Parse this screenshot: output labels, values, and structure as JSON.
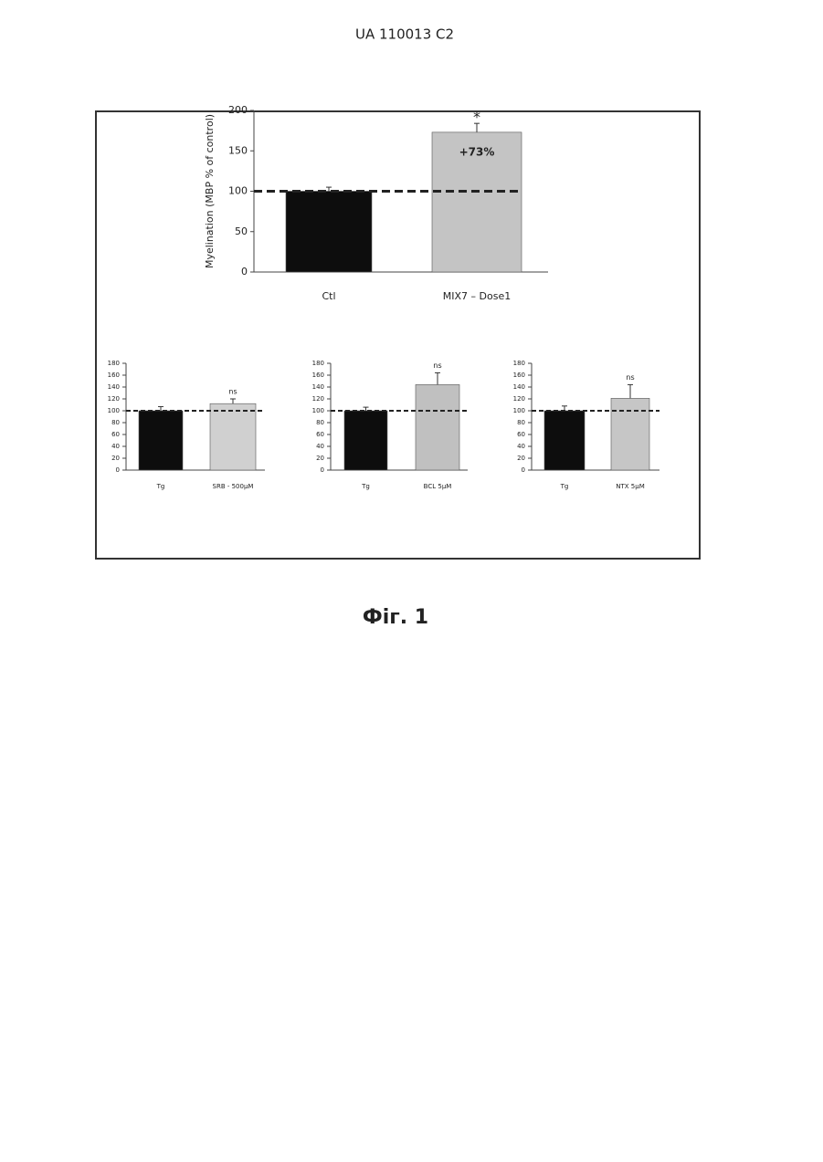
{
  "header": "UA   110013   C2",
  "chart_data": [
    {
      "type": "bar",
      "ylabel": "Myelination (MBP % of control)",
      "categories": [
        "Ctl",
        "MIX7 – Dose1"
      ],
      "values": [
        100,
        173
      ],
      "errors": [
        5,
        11
      ],
      "colors": [
        "#0d0d0d",
        "#c4c4c4"
      ],
      "annotations": [
        {
          "text": "*"
        },
        {
          "text": "+73%"
        }
      ],
      "ylim": [
        0,
        200
      ],
      "yticks": [
        0,
        50,
        100,
        150,
        200
      ],
      "reference_line": 100
    },
    {
      "type": "bar",
      "categories": [
        "Tg",
        "SRB - 500µM"
      ],
      "values": [
        100,
        112
      ],
      "errors": [
        7,
        8
      ],
      "colors": [
        "#0d0d0d",
        "#d0d0d0"
      ],
      "annotations": [
        {
          "text": "ns"
        }
      ],
      "ylim": [
        0,
        180
      ],
      "yticks": [
        0,
        20,
        40,
        60,
        80,
        100,
        120,
        140,
        160,
        180
      ],
      "reference_line": 100
    },
    {
      "type": "bar",
      "categories": [
        "Tg",
        "BCL 5µM"
      ],
      "values": [
        100,
        144
      ],
      "errors": [
        6,
        20
      ],
      "colors": [
        "#0d0d0d",
        "#c0c0c0"
      ],
      "annotations": [
        {
          "text": "ns"
        }
      ],
      "ylim": [
        0,
        180
      ],
      "yticks": [
        0,
        20,
        40,
        60,
        80,
        100,
        120,
        140,
        160,
        180
      ],
      "reference_line": 100
    },
    {
      "type": "bar",
      "categories": [
        "Tg",
        "NTX 5µM"
      ],
      "values": [
        100,
        121
      ],
      "errors": [
        8,
        23
      ],
      "colors": [
        "#0d0d0d",
        "#c6c6c6"
      ],
      "annotations": [
        {
          "text": "ns"
        }
      ],
      "ylim": [
        0,
        180
      ],
      "yticks": [
        0,
        20,
        40,
        60,
        80,
        100,
        120,
        140,
        160,
        180
      ],
      "reference_line": 100
    }
  ],
  "caption": "Фіг. 1"
}
